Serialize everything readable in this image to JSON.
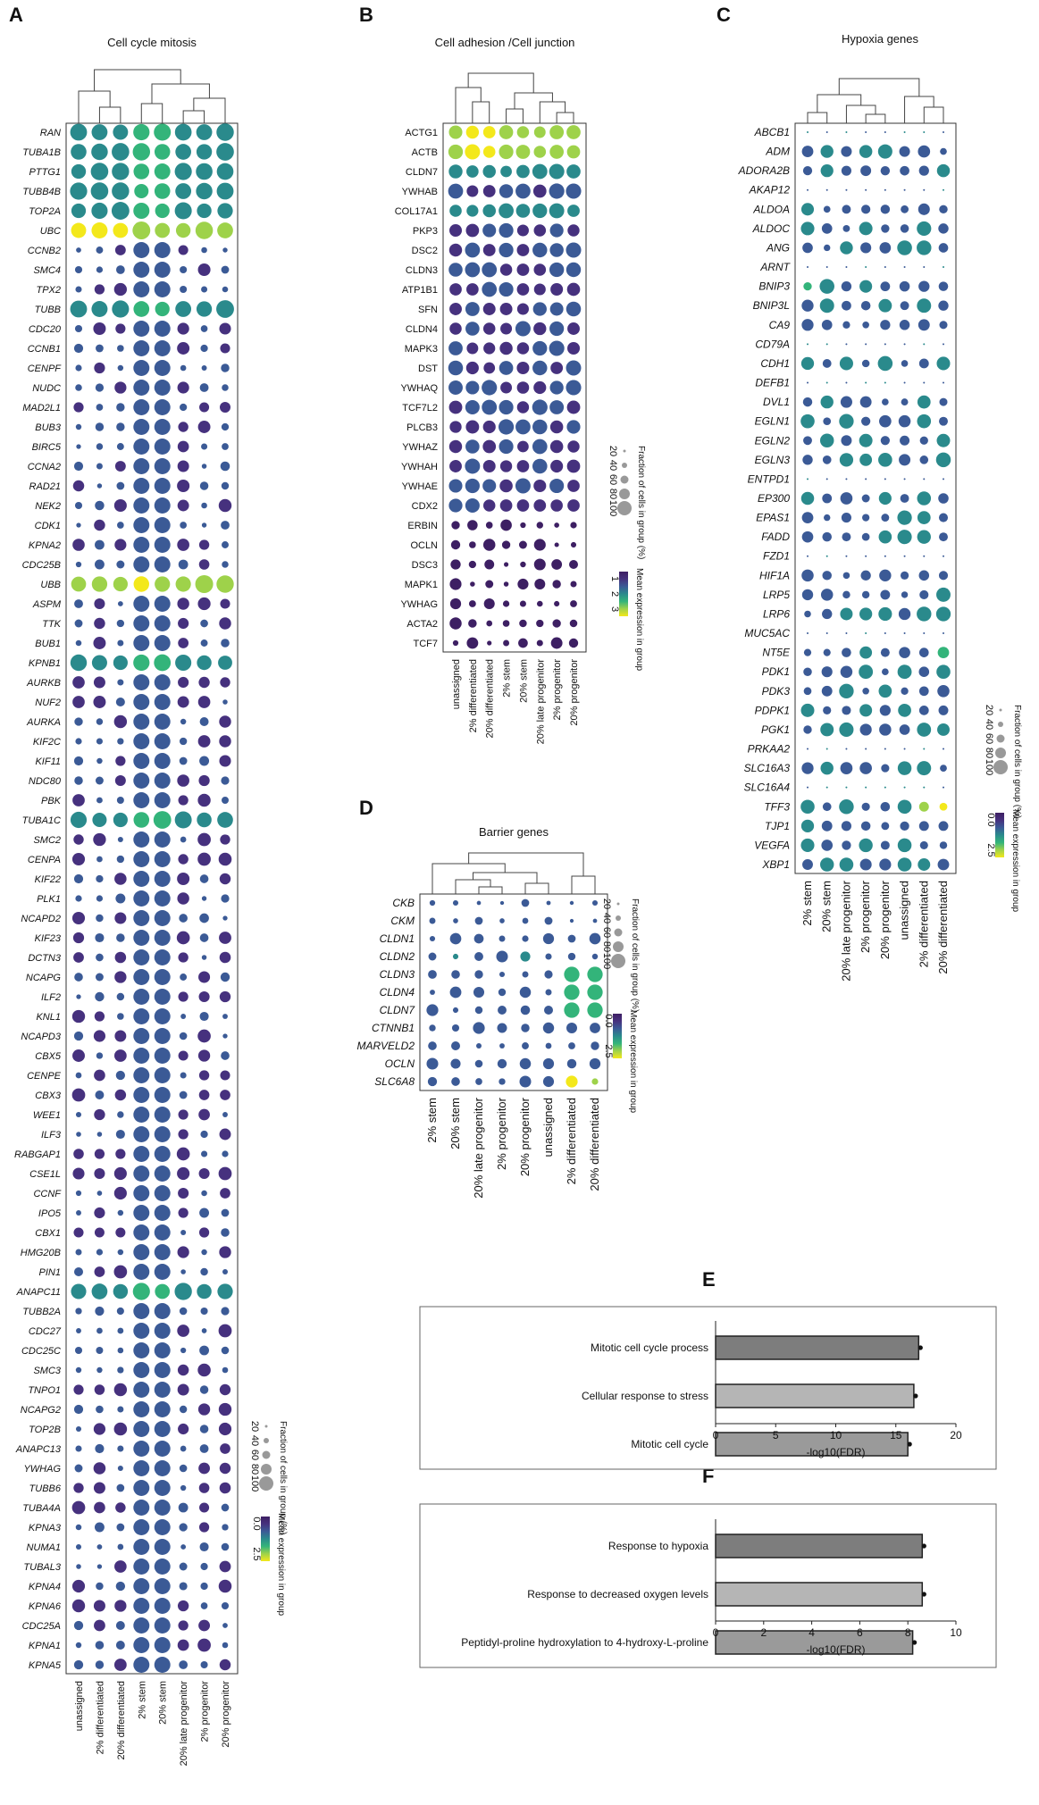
{
  "chart_data": [
    {
      "type": "dotplot",
      "panel": "A",
      "title": "Cell cycle mitosis",
      "columns": [
        "unassigned",
        "2% differentiated",
        "20% differentiated",
        "2% stem",
        "20% stem",
        "20% late progenitor",
        "2% progenitor",
        "20% progenitor"
      ],
      "genes": [
        "RAN",
        "TUBA1B",
        "PTTG1",
        "TUBB4B",
        "TOP2A",
        "UBC",
        "CCNB2",
        "SMC4",
        "TPX2",
        "TUBB",
        "CDC20",
        "CCNB1",
        "CENPF",
        "NUDC",
        "MAD2L1",
        "BUB3",
        "BIRC5",
        "CCNA2",
        "RAD21",
        "NEK2",
        "CDK1",
        "KPNA2",
        "CDC25B",
        "UBB",
        "ASPM",
        "TTK",
        "BUB1",
        "KPNB1",
        "AURKB",
        "NUF2",
        "AURKA",
        "KIF2C",
        "KIF11",
        "NDC80",
        "PBK",
        "TUBA1C",
        "SMC2",
        "CENPA",
        "KIF22",
        "PLK1",
        "NCAPD2",
        "KIF23",
        "DCTN3",
        "NCAPG",
        "ILF2",
        "KNL1",
        "NCAPD3",
        "CBX5",
        "CENPE",
        "CBX3",
        "WEE1",
        "ILF3",
        "RABGAP1",
        "CSE1L",
        "CCNF",
        "IPO5",
        "CBX1",
        "HMG20B",
        "PIN1",
        "ANAPC11",
        "TUBB2A",
        "CDC27",
        "CDC25C",
        "SMC3",
        "TNPO1",
        "NCAPG2",
        "TOP2B",
        "ANAPC13",
        "YWHAG",
        "TUBB6",
        "TUBA4A",
        "KPNA3",
        "NUMA1",
        "TUBAL3",
        "KPNA4",
        "KPNA6",
        "CDC25A",
        "KPNA1",
        "KPNA5"
      ],
      "size_legend": {
        "title": "Fraction of cells in group (%)",
        "ticks": [
          "20",
          "40",
          "60",
          "80",
          "100"
        ]
      },
      "color_legend": {
        "title": "Mean expression in group",
        "ticks": [
          "0.0",
          "2.5"
        ]
      }
    },
    {
      "type": "dotplot",
      "panel": "B",
      "title": "Cell adhesion /Cell junction",
      "columns": [
        "unassigned",
        "2% differentiated",
        "20% differentiated",
        "2% stem",
        "20% stem",
        "20% late progenitor",
        "2% progenitor",
        "20% progenitor"
      ],
      "genes": [
        "ACTG1",
        "ACTB",
        "CLDN7",
        "YWHAB",
        "COL17A1",
        "PKP3",
        "DSC2",
        "CLDN3",
        "ATP1B1",
        "SFN",
        "CLDN4",
        "MAPK3",
        "DST",
        "YWHAQ",
        "TCF7L2",
        "PLCB3",
        "YWHAZ",
        "YWHAH",
        "YWHAE",
        "CDX2",
        "ERBIN",
        "OCLN",
        "DSC3",
        "MAPK1",
        "YWHAG",
        "ACTA2",
        "TCF7"
      ],
      "size_legend": {
        "title": "Fraction of cells in group (%)",
        "ticks": [
          "20",
          "40",
          "60",
          "80",
          "100"
        ]
      },
      "color_legend": {
        "title": "Mean expression in group",
        "ticks": [
          "1",
          "2",
          "3"
        ]
      }
    },
    {
      "type": "dotplot",
      "panel": "C",
      "title": "Hypoxia genes",
      "columns": [
        "2% stem",
        "20% stem",
        "20% late progenitor",
        "2% progenitor",
        "20% progenitor",
        "unassigned",
        "2% differentiated",
        "20% differentiated"
      ],
      "genes": [
        "ABCB1",
        "ADM",
        "ADORA2B",
        "AKAP12",
        "ALDOA",
        "ALDOC",
        "ANG",
        "ARNT",
        "BNIP3",
        "BNIP3L",
        "CA9",
        "CD79A",
        "CDH1",
        "DEFB1",
        "DVL1",
        "EGLN1",
        "EGLN2",
        "EGLN3",
        "ENTPD1",
        "EP300",
        "EPAS1",
        "FADD",
        "FZD1",
        "HIF1A",
        "LRP5",
        "LRP6",
        "MUC5AC",
        "NT5E",
        "PDK1",
        "PDK3",
        "PDPK1",
        "PGK1",
        "PRKAA2",
        "SLC16A3",
        "SLC16A4",
        "TFF3",
        "TJP1",
        "VEGFA",
        "XBP1"
      ],
      "size_legend": {
        "title": "Fraction of cells in group (%)",
        "ticks": [
          "20",
          "40",
          "60",
          "80",
          "100"
        ]
      },
      "color_legend": {
        "title": "Mean expression in group",
        "ticks": [
          "0.0",
          "2.5"
        ]
      }
    },
    {
      "type": "dotplot",
      "panel": "D",
      "title": "Barrier genes",
      "columns": [
        "2% stem",
        "20% stem",
        "20% late progenitor",
        "2% progenitor",
        "20% progenitor",
        "unassigned",
        "2% differentiated",
        "20% differentiated"
      ],
      "genes": [
        "CKB",
        "CKM",
        "CLDN1",
        "CLDN2",
        "CLDN3",
        "CLDN4",
        "CLDN7",
        "CTNNB1",
        "MARVELD2",
        "OCLN",
        "SLC6A8"
      ],
      "size_legend": {
        "title": "Fraction of cells in group (%)",
        "ticks": [
          "20",
          "40",
          "60",
          "80",
          "100"
        ]
      },
      "color_legend": {
        "title": "Mean expression in group",
        "ticks": [
          "0.0",
          "2.5"
        ]
      }
    },
    {
      "type": "bar",
      "panel": "E",
      "orientation": "horizontal",
      "categories": [
        "Mitotic cell cycle process",
        "Cellular response to stress",
        "Mitotic cell cycle"
      ],
      "values": [
        16.9,
        16.5,
        16.0
      ],
      "xlabel": "-log10(FDR)",
      "xlim": [
        0,
        20
      ],
      "xticks": [
        "0",
        "5",
        "10",
        "15",
        "20"
      ]
    },
    {
      "type": "bar",
      "panel": "F",
      "orientation": "horizontal",
      "categories": [
        "Response to hypoxia",
        "Response to decreased oxygen levels",
        "Peptidyl-proline hydroxylation to 4-hydroxy-L-proline"
      ],
      "values": [
        8.6,
        8.6,
        8.2
      ],
      "xlabel": "-log10(FDR)",
      "xlim": [
        0,
        10
      ],
      "xticks": [
        "0",
        "2",
        "4",
        "6",
        "8",
        "10"
      ]
    }
  ],
  "colors": {
    "dark_purple": "#3d1f63",
    "purple": "#46317e",
    "blue": "#3b5a96",
    "teal": "#2a8a8c",
    "green": "#33b47a",
    "lime": "#9ed24a",
    "yellow": "#f3e81b",
    "bar_dark": "#7d7d7d",
    "bar_light": "#b5b5b5",
    "bar_mid": "#9a9a9a",
    "legend_grey": "#999999"
  },
  "panel_labels": [
    "A",
    "B",
    "C",
    "D",
    "E",
    "F"
  ]
}
